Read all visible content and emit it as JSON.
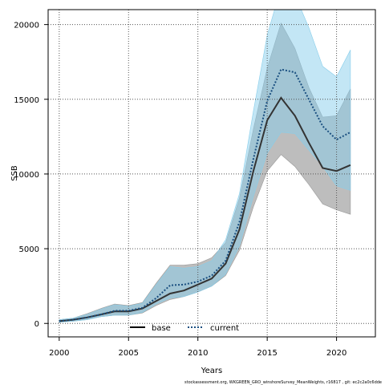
{
  "chart_data": {
    "type": "line",
    "title": "",
    "xlabel": "Years",
    "ylabel": "SSB",
    "xlim": [
      1999.2,
      2022.8
    ],
    "ylim": [
      -900,
      21000
    ],
    "x_ticks": [
      2000,
      2005,
      2010,
      2015,
      2020
    ],
    "y_ticks": [
      0,
      5000,
      10000,
      15000,
      20000
    ],
    "grid": true,
    "legend_position": "bottom-center",
    "series": [
      {
        "name": "base",
        "color": "#333333",
        "band_color": "#999999",
        "line_style": "solid",
        "x": [
          2000,
          2001,
          2002,
          2003,
          2004,
          2005,
          2006,
          2007,
          2008,
          2009,
          2010,
          2011,
          2012,
          2013,
          2014,
          2015,
          2016,
          2017,
          2018,
          2019,
          2020,
          2021
        ],
        "y": [
          150,
          250,
          400,
          600,
          800,
          800,
          1000,
          1500,
          2000,
          2200,
          2600,
          3000,
          4000,
          6300,
          10200,
          13600,
          15100,
          13900,
          12100,
          10400,
          10200,
          10600
        ],
        "lower": [
          80,
          150,
          250,
          450,
          550,
          550,
          700,
          1200,
          1600,
          1800,
          2100,
          2500,
          3200,
          4900,
          7800,
          10200,
          11300,
          10500,
          9300,
          8000,
          7600,
          7300
        ],
        "upper": [
          250,
          350,
          650,
          1000,
          1300,
          1200,
          1400,
          2700,
          3900,
          3900,
          4000,
          4400,
          5400,
          8400,
          13000,
          17100,
          20100,
          18400,
          15800,
          13800,
          13900,
          15700
        ]
      },
      {
        "name": "current",
        "color": "#1a4f80",
        "band_color": "#87ceeb",
        "line_style": "dotted",
        "x": [
          2000,
          2001,
          2002,
          2003,
          2004,
          2005,
          2006,
          2007,
          2008,
          2009,
          2010,
          2011,
          2012,
          2013,
          2014,
          2015,
          2016,
          2017,
          2018,
          2019,
          2020,
          2021
        ],
        "y": [
          150,
          250,
          400,
          600,
          850,
          850,
          1050,
          1700,
          2550,
          2600,
          2800,
          3200,
          4200,
          6800,
          11000,
          14900,
          17000,
          16800,
          15000,
          13200,
          12300,
          12800
        ],
        "lower": [
          80,
          150,
          250,
          450,
          550,
          550,
          750,
          1300,
          1700,
          1800,
          2100,
          2500,
          3300,
          5200,
          8500,
          11400,
          12800,
          12700,
          11600,
          10500,
          9200,
          8900
        ],
        "upper": [
          250,
          350,
          600,
          950,
          1250,
          1150,
          1350,
          2600,
          3800,
          3700,
          3800,
          4200,
          5600,
          8700,
          14200,
          19300,
          22500,
          22000,
          19800,
          17200,
          16500,
          18300
        ]
      }
    ]
  },
  "footer": {
    "note": "stockassessment.org,  WKGREEN_GRO_winshoreSurvey_MeanWeights,  r16817 ,  git:  ec2c2a0c6dde"
  }
}
